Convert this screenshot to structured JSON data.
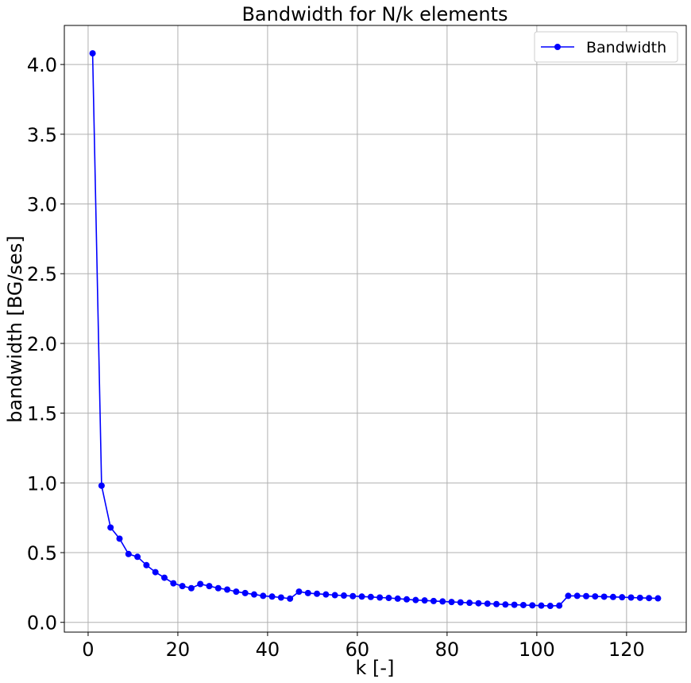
{
  "chart_data": {
    "type": "line",
    "title": "Bandwidth for N/k elements",
    "xlabel": "k [-]",
    "ylabel": "bandwidth [BG/ses]",
    "xlim": [
      -5.3,
      133.3
    ],
    "ylim": [
      -0.07,
      4.28
    ],
    "xticks": [
      0,
      20,
      40,
      60,
      80,
      100,
      120
    ],
    "yticks": [
      0.0,
      0.5,
      1.0,
      1.5,
      2.0,
      2.5,
      3.0,
      3.5,
      4.0
    ],
    "xtick_labels": [
      "0",
      "20",
      "40",
      "60",
      "80",
      "100",
      "120"
    ],
    "ytick_labels": [
      "0.0",
      "0.5",
      "1.0",
      "1.5",
      "2.0",
      "2.5",
      "3.0",
      "3.5",
      "4.0"
    ],
    "grid": true,
    "legend_position": "top-right",
    "series": [
      {
        "name": "Bandwidth",
        "color": "#0000ff",
        "marker": "circle",
        "x": [
          1,
          3,
          5,
          7,
          9,
          11,
          13,
          15,
          17,
          19,
          21,
          23,
          25,
          27,
          29,
          31,
          33,
          35,
          37,
          39,
          41,
          43,
          45,
          47,
          49,
          51,
          53,
          55,
          57,
          59,
          61,
          63,
          65,
          67,
          69,
          71,
          73,
          75,
          77,
          79,
          81,
          83,
          85,
          87,
          89,
          91,
          93,
          95,
          97,
          99,
          101,
          103,
          105,
          107,
          109,
          111,
          113,
          115,
          117,
          119,
          121,
          123,
          125,
          127
        ],
        "y": [
          4.08,
          0.98,
          0.68,
          0.6,
          0.49,
          0.47,
          0.41,
          0.36,
          0.32,
          0.28,
          0.26,
          0.245,
          0.275,
          0.26,
          0.245,
          0.235,
          0.22,
          0.21,
          0.2,
          0.19,
          0.185,
          0.178,
          0.17,
          0.22,
          0.21,
          0.205,
          0.2,
          0.195,
          0.192,
          0.188,
          0.185,
          0.182,
          0.178,
          0.175,
          0.17,
          0.165,
          0.16,
          0.157,
          0.153,
          0.15,
          0.146,
          0.143,
          0.14,
          0.137,
          0.134,
          0.131,
          0.128,
          0.126,
          0.124,
          0.122,
          0.12,
          0.118,
          0.12,
          0.19,
          0.19,
          0.188,
          0.186,
          0.184,
          0.182,
          0.18,
          0.178,
          0.176,
          0.174,
          0.172
        ]
      }
    ]
  }
}
